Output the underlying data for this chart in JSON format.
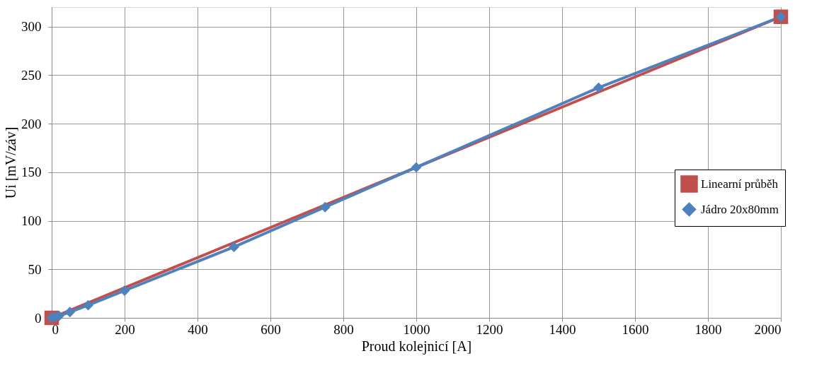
{
  "chart_data": {
    "type": "line",
    "xlabel": "Proud kolejnicí [A]",
    "ylabel": "Ui [mV/záv]",
    "xlim": [
      0,
      2000
    ],
    "xticks": [
      0,
      200,
      400,
      600,
      800,
      1000,
      1200,
      1400,
      1600,
      1800,
      2000
    ],
    "ylim": [
      0,
      320
    ],
    "yticks": [
      0,
      50,
      100,
      150,
      200,
      250,
      300
    ],
    "grid": true,
    "legend": "right",
    "series": [
      {
        "name": "Linearní průběh",
        "color": "#c0504d",
        "marker": "square",
        "x": [
          0,
          2000
        ],
        "values": [
          0,
          310
        ]
      },
      {
        "name": "Jádro 20x80mm",
        "color": "#4f81bd",
        "marker": "diamond",
        "x": [
          0,
          10,
          20,
          50,
          100,
          200,
          500,
          750,
          1000,
          1500,
          2000
        ],
        "values": [
          0,
          1,
          2,
          6,
          13,
          28,
          73,
          114,
          155,
          237,
          310
        ]
      }
    ]
  }
}
